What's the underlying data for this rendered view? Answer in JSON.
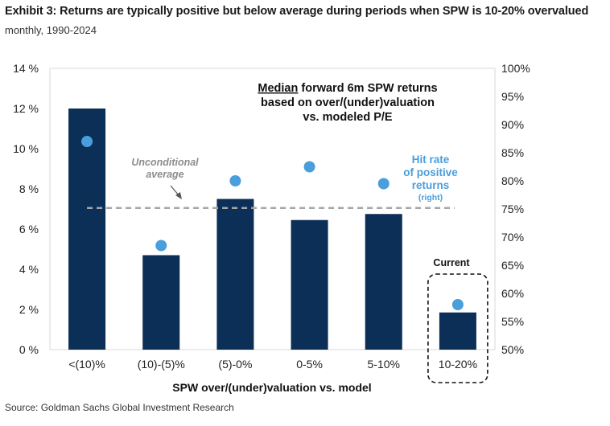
{
  "title": "Exhibit 3: Returns are typically positive but below average during periods when SPW is 10-20% overvalued",
  "subtitle": "monthly, 1990-2024",
  "source": "Source: Goldman Sachs Global Investment Research",
  "chart_data": {
    "type": "bar",
    "categories": [
      "<(10)%",
      "(10)-(5)%",
      "(5)-0%",
      "0-5%",
      "5-10%",
      "10-20%"
    ],
    "bars_values": [
      12.0,
      4.7,
      7.5,
      6.45,
      6.75,
      1.85
    ],
    "hit_rate_values": [
      87,
      68.5,
      80,
      82.5,
      79.5,
      58
    ],
    "unconditional_average": 7.05,
    "ylim_left": [
      0,
      14
    ],
    "yticks_left": [
      "0 %",
      "2 %",
      "4 %",
      "6 %",
      "8 %",
      "10 %",
      "12 %",
      "14 %"
    ],
    "ylim_right": [
      50,
      100
    ],
    "yticks_right": [
      "50%",
      "55%",
      "60%",
      "65%",
      "70%",
      "75%",
      "80%",
      "85%",
      "90%",
      "95%",
      "100%"
    ],
    "xlabel": "SPW over/(under)valuation vs. model",
    "annotations": {
      "heading_underlined": "Median",
      "heading_line1_rest": " forward 6m SPW returns",
      "heading_line2": "based on over/(under)valuation",
      "heading_line3": "vs. modeled P/E",
      "avg_line1": "Unconditional",
      "avg_line2": "average",
      "hit_line1": "Hit rate",
      "hit_line2": "of positive",
      "hit_line3": "returns",
      "hit_line4": "(right)",
      "current": "Current"
    },
    "colors": {
      "bar": "#0b2f56",
      "dot": "#4a9edb",
      "avg_line": "#a6a6a6",
      "avg_text": "#8c8c8c",
      "hit_text": "#4a9edb"
    }
  }
}
